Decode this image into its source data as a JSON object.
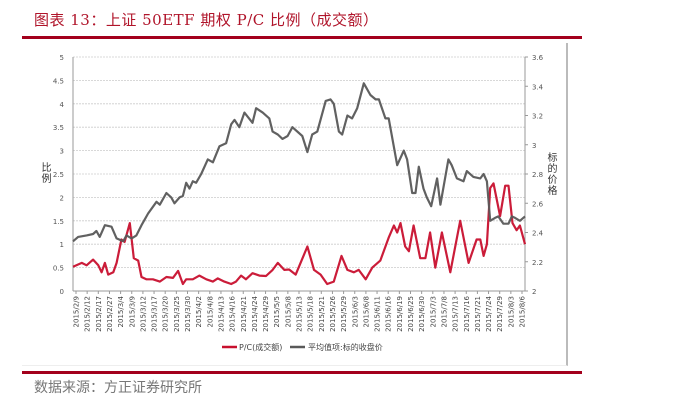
{
  "title": "图表 13：上证 50ETF 期权 P/C 比例（成交额）",
  "source": "数据来源：方正证券研究所",
  "chart_data": {
    "type": "line",
    "title": "上证 50ETF 期权 P/C 比例（成交额）",
    "xlabel": "",
    "ylabel": "比例",
    "y2label": "标的价格",
    "ylim": [
      0,
      5
    ],
    "y2lim": [
      2,
      3.6
    ],
    "yticks": [
      "0",
      "0.5",
      "1",
      "1.5",
      "2",
      "2.5",
      "3",
      "3.5",
      "4",
      "4.5",
      "5"
    ],
    "y2ticks": [
      "2",
      "2.2",
      "2.4",
      "2.6",
      "2.8",
      "3",
      "3.2",
      "3.4",
      "3.6"
    ],
    "xlim": [
      0,
      123.4
    ],
    "x_index_unit": "trading day",
    "categories": [
      "2015/2/9",
      "2015/2/12",
      "2015/2/17",
      "2015/2/27",
      "2015/3/4",
      "2015/3/9",
      "2015/3/12",
      "2015/3/17",
      "2015/3/20",
      "2015/3/25",
      "2015/3/30",
      "2015/4/2",
      "2015/4/8",
      "2015/4/13",
      "2015/4/16",
      "2015/4/21",
      "2015/4/24",
      "2015/4/29",
      "2015/5/5",
      "2015/5/8",
      "2015/5/13",
      "2015/5/18",
      "2015/5/21",
      "2015/5/26",
      "2015/5/29",
      "2015/6/3",
      "2015/6/8",
      "2015/6/11",
      "2015/6/16",
      "2015/6/19",
      "2015/6/25",
      "2015/6/30",
      "2015/7/3",
      "2015/7/8",
      "2015/7/13",
      "2015/7/16",
      "2015/7/21",
      "2015/7/24",
      "2015/7/29",
      "2015/8/3",
      "2015/8/6"
    ],
    "grid": true,
    "legend_position": "bottom",
    "series": [
      {
        "name": "P/C(成交额)",
        "axis": "left",
        "color": "#c8102e",
        "x": [
          0,
          2.4,
          3.7,
          5.5,
          6.9,
          7.8,
          8.7,
          9.6,
          11,
          11.9,
          13.2,
          14.1,
          15.5,
          16.6,
          17.8,
          18.7,
          20,
          21.8,
          23.7,
          25.5,
          27.3,
          28.7,
          30,
          30.9,
          32.7,
          34.5,
          36.4,
          38.2,
          39.5,
          41.3,
          43.2,
          44.5,
          45.9,
          47.2,
          49,
          50.9,
          52.7,
          54.5,
          55.9,
          57.7,
          59,
          60.8,
          64,
          65.8,
          67.6,
          69.4,
          71.2,
          73.3,
          74.9,
          76.7,
          78,
          79.9,
          81.7,
          83.9,
          86.2,
          87.6,
          88.5,
          89.4,
          90.7,
          91.7,
          93,
          94.8,
          96.2,
          97.5,
          98.9,
          100.7,
          103,
          105.7,
          108,
          110.2,
          111.2,
          112.1,
          113,
          113.9,
          114.8,
          116.6,
          118,
          118.9,
          120,
          121.1,
          122,
          123.4
        ],
        "values": [
          0.52,
          0.6,
          0.55,
          0.67,
          0.55,
          0.4,
          0.6,
          0.35,
          0.4,
          0.6,
          1.1,
          1.05,
          1.45,
          0.7,
          0.65,
          0.3,
          0.25,
          0.25,
          0.2,
          0.3,
          0.28,
          0.43,
          0.15,
          0.25,
          0.25,
          0.33,
          0.25,
          0.2,
          0.27,
          0.2,
          0.15,
          0.2,
          0.33,
          0.25,
          0.38,
          0.33,
          0.32,
          0.45,
          0.6,
          0.45,
          0.46,
          0.35,
          0.95,
          0.45,
          0.35,
          0.15,
          0.2,
          0.75,
          0.45,
          0.4,
          0.45,
          0.25,
          0.5,
          0.65,
          1.14,
          1.4,
          1.25,
          1.45,
          0.95,
          0.85,
          1.4,
          0.7,
          0.7,
          1.25,
          0.5,
          1.25,
          0.4,
          1.5,
          0.6,
          1.1,
          1.1,
          0.75,
          1.0,
          2.2,
          2.3,
          1.6,
          2.25,
          2.25,
          1.45,
          1.3,
          1.4,
          1.0
        ]
      },
      {
        "name": "平均值项:标的收盘价",
        "axis": "right",
        "color": "#595959",
        "x": [
          0,
          1.4,
          3.7,
          5.5,
          6.4,
          7.3,
          8.7,
          10.5,
          11.9,
          13.7,
          14.6,
          16,
          17.3,
          18.7,
          20.5,
          22.8,
          23.7,
          25.5,
          26.8,
          27.7,
          29.1,
          30,
          30.9,
          31.8,
          32.7,
          33.6,
          35,
          36.8,
          38.2,
          40,
          41.8,
          43.2,
          44.1,
          45.4,
          46.8,
          49,
          50,
          51.8,
          53.6,
          54.5,
          55.9,
          57.2,
          58.6,
          59.9,
          62.6,
          64,
          65.3,
          66.7,
          69,
          70.3,
          71.2,
          72.6,
          73.5,
          74.9,
          76.2,
          77.6,
          79.4,
          81.2,
          82.6,
          83.5,
          85.3,
          86.2,
          88.5,
          90.3,
          91.2,
          92.6,
          93.5,
          94.4,
          95.7,
          96.6,
          97.8,
          99.4,
          100.3,
          102.5,
          103.4,
          104.8,
          106.6,
          107.5,
          109.3,
          111.2,
          112.1,
          113,
          113.9,
          115.2,
          116.1,
          117.5,
          118.9,
          119.8,
          120.7,
          122,
          123.4
        ],
        "values": [
          2.34,
          2.37,
          2.38,
          2.39,
          2.41,
          2.37,
          2.45,
          2.44,
          2.36,
          2.34,
          2.38,
          2.36,
          2.38,
          2.45,
          2.53,
          2.61,
          2.59,
          2.67,
          2.64,
          2.6,
          2.64,
          2.65,
          2.74,
          2.7,
          2.75,
          2.74,
          2.8,
          2.9,
          2.88,
          2.99,
          3.01,
          3.14,
          3.17,
          3.12,
          3.22,
          3.15,
          3.25,
          3.22,
          3.18,
          3.09,
          3.07,
          3.04,
          3.06,
          3.12,
          3.06,
          2.95,
          3.07,
          3.09,
          3.3,
          3.31,
          3.28,
          3.09,
          3.07,
          3.2,
          3.18,
          3.25,
          3.42,
          3.34,
          3.31,
          3.31,
          3.18,
          3.18,
          2.86,
          2.96,
          2.9,
          2.67,
          2.67,
          2.85,
          2.7,
          2.64,
          2.58,
          2.77,
          2.59,
          2.9,
          2.86,
          2.77,
          2.75,
          2.82,
          2.78,
          2.77,
          2.8,
          2.75,
          2.48,
          2.5,
          2.51,
          2.46,
          2.46,
          2.51,
          2.5,
          2.48,
          2.51
        ]
      }
    ]
  }
}
